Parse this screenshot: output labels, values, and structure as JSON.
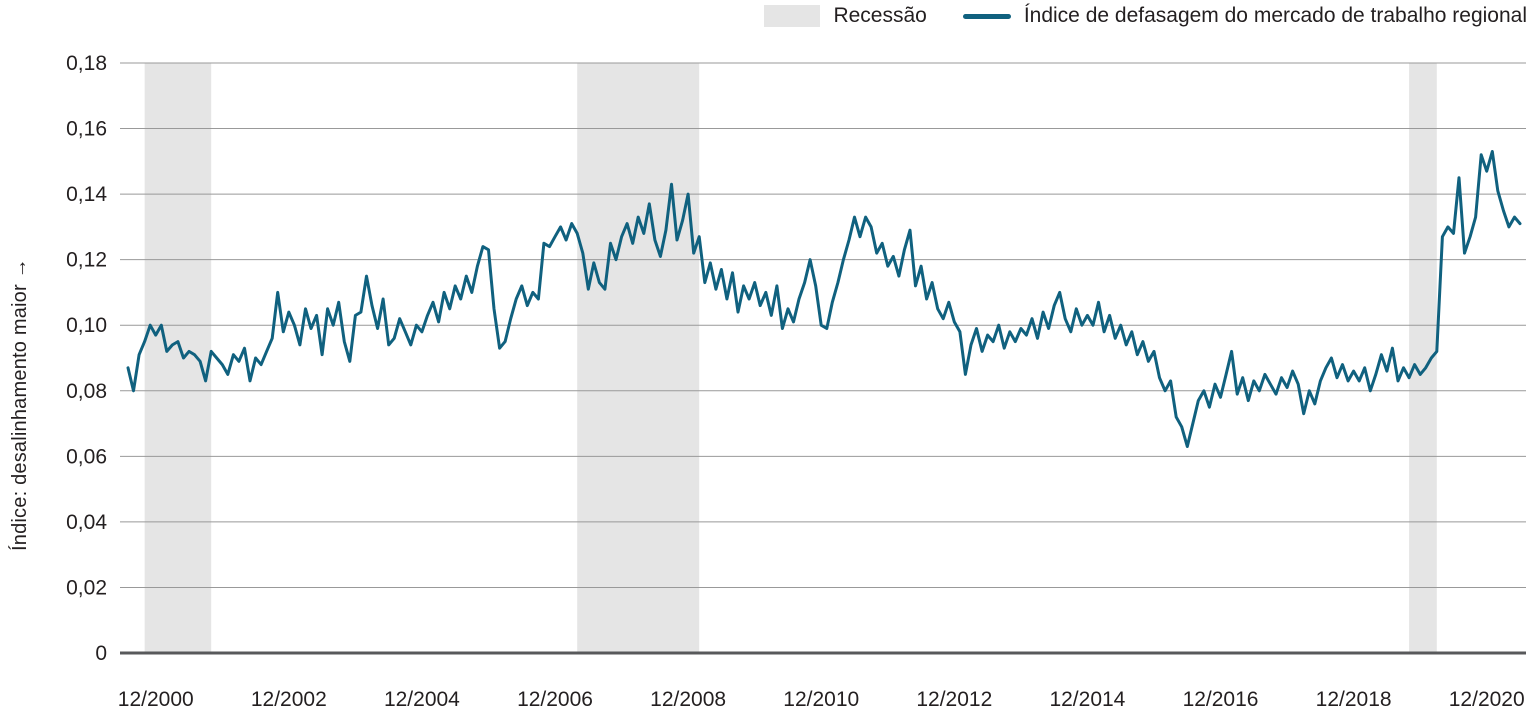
{
  "chart_data": {
    "type": "line",
    "title": "",
    "xlabel": "",
    "ylabel": "Índice: desalinhamento maior →",
    "x_start": "2000-07",
    "frequency": "monthly",
    "ylim": [
      0,
      0.18
    ],
    "grid": "horizontal",
    "legend": [
      {
        "label": "Recessão",
        "swatch": "recession-band"
      },
      {
        "label": "Índice de defasagem do mercado de trabalho regional",
        "swatch": "line"
      }
    ],
    "y_ticks": {
      "values": [
        0,
        0.02,
        0.04,
        0.06,
        0.08,
        0.1,
        0.12,
        0.14,
        0.16,
        0.18
      ],
      "labels": [
        "0",
        "0,02",
        "0,04",
        "0,06",
        "0,08",
        "0,10",
        "0,12",
        "0,14",
        "0,16",
        "0,18"
      ]
    },
    "x_ticks": {
      "indices": [
        5,
        29,
        53,
        77,
        101,
        125,
        149,
        173,
        197,
        221,
        245
      ],
      "labels": [
        "12/2000",
        "12/2002",
        "12/2004",
        "12/2006",
        "12/2008",
        "12/2010",
        "12/2012",
        "12/2014",
        "12/2016",
        "12/2018",
        "12/2020"
      ]
    },
    "recession_bands": [
      {
        "start": "2000-10",
        "end": "2001-10",
        "start_index": 3,
        "end_index": 15
      },
      {
        "start": "2007-04",
        "end": "2009-02",
        "start_index": 81,
        "end_index": 103
      },
      {
        "start": "2019-10",
        "end": "2020-03",
        "start_index": 231,
        "end_index": 236
      }
    ],
    "series": [
      {
        "name": "Índice de defasagem do mercado de trabalho regional",
        "values": [
          0.087,
          0.08,
          0.091,
          0.095,
          0.1,
          0.097,
          0.1,
          0.092,
          0.094,
          0.095,
          0.09,
          0.092,
          0.091,
          0.089,
          0.083,
          0.092,
          0.09,
          0.088,
          0.085,
          0.091,
          0.089,
          0.093,
          0.083,
          0.09,
          0.088,
          0.092,
          0.096,
          0.11,
          0.098,
          0.104,
          0.1,
          0.094,
          0.105,
          0.099,
          0.103,
          0.091,
          0.105,
          0.1,
          0.107,
          0.095,
          0.089,
          0.103,
          0.104,
          0.115,
          0.106,
          0.099,
          0.108,
          0.094,
          0.096,
          0.102,
          0.098,
          0.094,
          0.1,
          0.098,
          0.103,
          0.107,
          0.101,
          0.11,
          0.105,
          0.112,
          0.108,
          0.115,
          0.11,
          0.118,
          0.124,
          0.123,
          0.105,
          0.093,
          0.095,
          0.102,
          0.108,
          0.112,
          0.106,
          0.11,
          0.108,
          0.125,
          0.124,
          0.127,
          0.13,
          0.126,
          0.131,
          0.128,
          0.122,
          0.111,
          0.119,
          0.113,
          0.111,
          0.125,
          0.12,
          0.127,
          0.131,
          0.125,
          0.133,
          0.128,
          0.137,
          0.126,
          0.121,
          0.129,
          0.143,
          0.126,
          0.132,
          0.14,
          0.122,
          0.127,
          0.113,
          0.119,
          0.111,
          0.117,
          0.108,
          0.116,
          0.104,
          0.112,
          0.108,
          0.113,
          0.106,
          0.11,
          0.103,
          0.112,
          0.099,
          0.105,
          0.101,
          0.108,
          0.113,
          0.12,
          0.112,
          0.1,
          0.099,
          0.107,
          0.113,
          0.12,
          0.126,
          0.133,
          0.127,
          0.133,
          0.13,
          0.122,
          0.125,
          0.118,
          0.121,
          0.115,
          0.123,
          0.129,
          0.112,
          0.118,
          0.108,
          0.113,
          0.105,
          0.102,
          0.107,
          0.101,
          0.098,
          0.085,
          0.094,
          0.099,
          0.092,
          0.097,
          0.095,
          0.1,
          0.093,
          0.098,
          0.095,
          0.099,
          0.097,
          0.102,
          0.096,
          0.104,
          0.099,
          0.106,
          0.11,
          0.102,
          0.098,
          0.105,
          0.1,
          0.103,
          0.1,
          0.107,
          0.098,
          0.103,
          0.096,
          0.1,
          0.094,
          0.098,
          0.091,
          0.095,
          0.089,
          0.092,
          0.084,
          0.08,
          0.083,
          0.072,
          0.069,
          0.063,
          0.07,
          0.077,
          0.08,
          0.075,
          0.082,
          0.078,
          0.085,
          0.092,
          0.079,
          0.084,
          0.077,
          0.083,
          0.08,
          0.085,
          0.082,
          0.079,
          0.084,
          0.081,
          0.086,
          0.082,
          0.073,
          0.08,
          0.076,
          0.083,
          0.087,
          0.09,
          0.084,
          0.088,
          0.083,
          0.086,
          0.083,
          0.087,
          0.08,
          0.085,
          0.091,
          0.086,
          0.093,
          0.083,
          0.087,
          0.084,
          0.088,
          0.085,
          0.087,
          0.09,
          0.092,
          0.127,
          0.13,
          0.128,
          0.145,
          0.122,
          0.127,
          0.133,
          0.152,
          0.147,
          0.153,
          0.141,
          0.135,
          0.13,
          0.133,
          0.131
        ]
      }
    ],
    "colors": {
      "line": "#10617f",
      "band": "#e5e5e5",
      "grid": "#999999",
      "axis": "#58595b",
      "text": "#231f20"
    }
  }
}
